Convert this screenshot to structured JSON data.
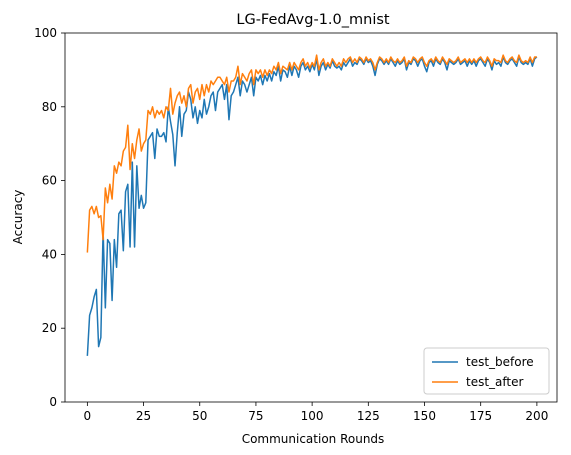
{
  "chart_data": {
    "type": "line",
    "title": "LG-FedAvg-1.0_mnist",
    "xlabel": "Communication Rounds",
    "ylabel": "Accuracy",
    "xlim": [
      -9.95,
      208.95
    ],
    "ylim": [
      0,
      100
    ],
    "xticks": [
      0,
      25,
      50,
      75,
      100,
      125,
      150,
      175,
      200
    ],
    "yticks": [
      0,
      20,
      40,
      60,
      80,
      100
    ],
    "grid": false,
    "legend": "lower-right",
    "series": [
      {
        "name": "test_before",
        "color": "#1f77b4",
        "values": [
          12.5,
          23.5,
          25.5,
          28.5,
          30.5,
          15.0,
          17.5,
          46.5,
          25.5,
          44.0,
          43.0,
          27.5,
          44.0,
          36.5,
          51.0,
          52.0,
          41.0,
          57.0,
          59.0,
          42.0,
          65.0,
          42.0,
          64.0,
          52.5,
          56.0,
          52.5,
          54.0,
          71.0,
          72.0,
          73.0,
          66.0,
          74.0,
          72.0,
          72.0,
          73.0,
          70.5,
          80.0,
          76.0,
          72.5,
          64.0,
          73.0,
          80.0,
          72.0,
          78.0,
          79.0,
          84.0,
          82.0,
          77.0,
          80.0,
          75.5,
          79.0,
          77.0,
          82.0,
          78.0,
          80.0,
          83.0,
          84.0,
          79.0,
          84.0,
          85.0,
          86.0,
          82.0,
          86.0,
          76.5,
          83.0,
          84.0,
          86.0,
          88.0,
          83.0,
          87.0,
          86.0,
          84.0,
          86.0,
          88.0,
          83.0,
          88.0,
          87.0,
          88.5,
          86.0,
          88.5,
          87.0,
          89.0,
          87.0,
          89.5,
          88.5,
          91.0,
          87.0,
          90.0,
          89.5,
          88.0,
          91.0,
          88.5,
          91.0,
          90.0,
          88.0,
          91.0,
          92.0,
          90.0,
          91.0,
          89.5,
          91.5,
          90.0,
          93.0,
          88.5,
          91.0,
          92.0,
          90.0,
          91.5,
          90.5,
          92.5,
          91.0,
          90.5,
          91.0,
          90.0,
          92.0,
          91.0,
          92.0,
          93.0,
          91.0,
          92.0,
          91.5,
          93.0,
          92.5,
          91.5,
          93.0,
          92.0,
          92.5,
          91.0,
          88.5,
          91.5,
          93.0,
          92.5,
          91.5,
          92.5,
          91.5,
          93.0,
          92.0,
          91.0,
          92.5,
          91.5,
          92.0,
          93.0,
          90.0,
          92.0,
          91.5,
          93.0,
          92.5,
          91.0,
          92.5,
          93.0,
          91.0,
          89.5,
          92.0,
          92.5,
          91.0,
          93.0,
          92.0,
          91.5,
          93.0,
          92.0,
          90.0,
          92.5,
          92.0,
          91.5,
          92.0,
          93.0,
          91.5,
          92.0,
          92.5,
          91.0,
          92.5,
          91.5,
          92.5,
          91.0,
          92.5,
          93.0,
          92.0,
          91.0,
          93.0,
          92.0,
          90.0,
          92.5,
          91.5,
          92.0,
          91.0,
          93.5,
          92.0,
          91.5,
          92.5,
          93.0,
          92.0,
          91.0,
          93.5,
          92.0,
          91.5,
          92.0,
          91.5,
          93.0,
          91.0,
          93.0,
          93.5
        ]
      },
      {
        "name": "test_after",
        "color": "#ff7f0e",
        "values": [
          40.5,
          52.0,
          53.0,
          51.0,
          53.0,
          50.0,
          50.5,
          44.0,
          58.0,
          54.0,
          59.0,
          55.0,
          64.0,
          62.0,
          65.0,
          64.0,
          68.0,
          69.0,
          75.0,
          63.0,
          70.0,
          66.0,
          71.0,
          74.0,
          68.0,
          70.0,
          71.0,
          79.0,
          78.0,
          80.0,
          77.0,
          79.0,
          78.0,
          79.0,
          77.0,
          80.0,
          79.0,
          85.0,
          78.0,
          81.0,
          83.0,
          84.0,
          81.0,
          83.0,
          80.0,
          85.0,
          86.0,
          81.0,
          84.0,
          85.0,
          82.0,
          86.0,
          83.0,
          86.0,
          84.0,
          87.0,
          86.0,
          87.0,
          88.0,
          88.0,
          87.0,
          86.0,
          88.0,
          84.0,
          87.0,
          87.0,
          88.0,
          91.0,
          86.0,
          89.0,
          88.0,
          87.0,
          89.0,
          90.0,
          86.0,
          90.0,
          89.0,
          90.0,
          88.0,
          90.0,
          88.5,
          90.0,
          89.0,
          91.0,
          90.0,
          92.0,
          89.0,
          91.0,
          90.5,
          90.0,
          92.0,
          90.0,
          92.0,
          91.0,
          90.0,
          92.0,
          93.0,
          91.0,
          92.0,
          90.5,
          92.0,
          91.0,
          94.0,
          90.0,
          92.0,
          93.0,
          91.0,
          92.0,
          91.0,
          93.0,
          92.0,
          91.0,
          92.0,
          91.0,
          93.0,
          92.0,
          93.0,
          93.5,
          92.0,
          93.0,
          92.0,
          93.5,
          93.0,
          92.0,
          93.5,
          92.5,
          93.0,
          92.0,
          90.0,
          92.0,
          93.5,
          93.0,
          92.0,
          93.0,
          92.0,
          93.5,
          92.5,
          92.0,
          93.0,
          92.0,
          92.5,
          93.5,
          91.0,
          92.5,
          92.0,
          93.5,
          93.0,
          92.0,
          93.0,
          93.5,
          92.0,
          91.0,
          92.5,
          93.0,
          92.0,
          93.5,
          92.5,
          92.0,
          93.5,
          92.5,
          91.5,
          93.0,
          92.5,
          92.0,
          92.5,
          93.5,
          92.0,
          92.5,
          93.0,
          92.0,
          93.0,
          92.0,
          93.0,
          92.0,
          93.0,
          93.5,
          92.5,
          92.0,
          93.5,
          92.5,
          91.0,
          93.0,
          92.5,
          92.5,
          92.0,
          94.0,
          92.5,
          92.0,
          93.0,
          93.5,
          92.5,
          92.0,
          94.0,
          92.5,
          92.0,
          92.5,
          92.0,
          93.5,
          92.0,
          93.5,
          93.5
        ]
      }
    ]
  }
}
